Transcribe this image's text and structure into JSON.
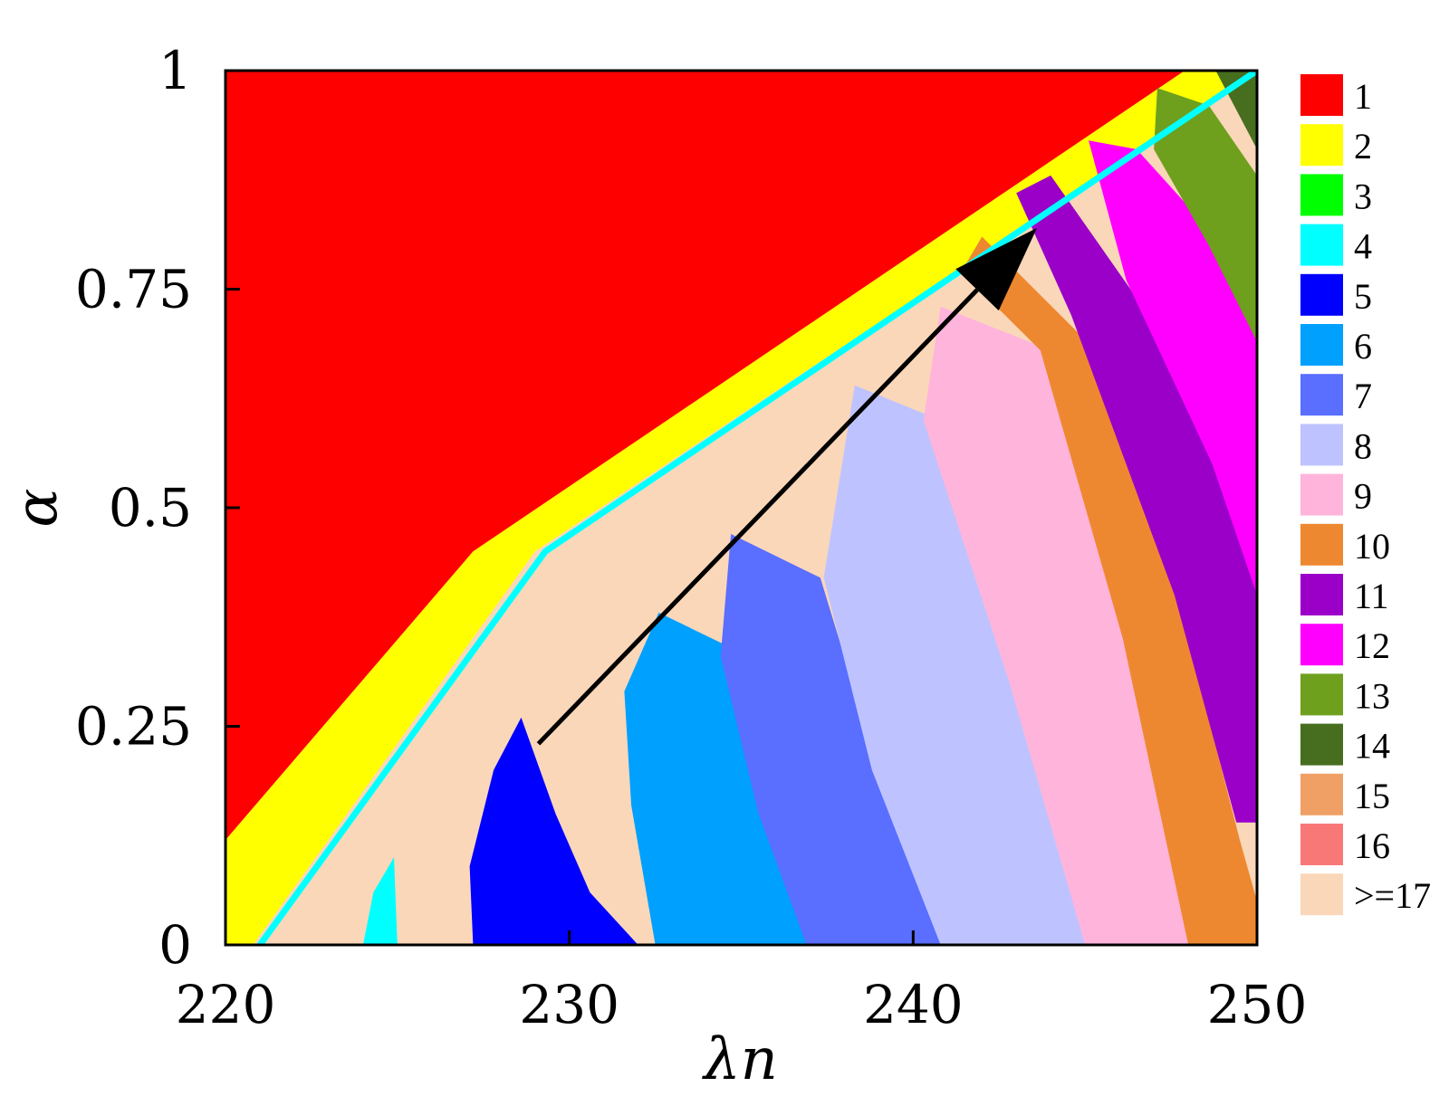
{
  "chart_data": {
    "type": "heatmap",
    "title": "",
    "xlabel": "λn",
    "ylabel": "α",
    "xlim": [
      220,
      250
    ],
    "ylim": [
      0,
      1
    ],
    "x_ticks": [
      {
        "value": 220,
        "label": "220"
      },
      {
        "value": 230,
        "label": "230"
      },
      {
        "value": 240,
        "label": "240"
      },
      {
        "value": 250,
        "label": "250"
      }
    ],
    "y_ticks": [
      {
        "value": 0,
        "label": "0"
      },
      {
        "value": 0.25,
        "label": "0.25"
      },
      {
        "value": 0.5,
        "label": "0.5"
      },
      {
        "value": 0.75,
        "label": "0.75"
      },
      {
        "value": 1,
        "label": "1"
      }
    ],
    "legend_position": "right",
    "legend": [
      {
        "label": "1",
        "color": "#ff0000"
      },
      {
        "label": "2",
        "color": "#ffff00"
      },
      {
        "label": "3",
        "color": "#00ff00"
      },
      {
        "label": "4",
        "color": "#00ffff"
      },
      {
        "label": "5",
        "color": "#0000ff"
      },
      {
        "label": "6",
        "color": "#00a0ff"
      },
      {
        "label": "7",
        "color": "#5a6eff"
      },
      {
        "label": "8",
        "color": "#bec3ff"
      },
      {
        "label": "9",
        "color": "#ffb4dc"
      },
      {
        "label": "10",
        "color": "#ee8830"
      },
      {
        "label": "11",
        "color": "#9b00c8"
      },
      {
        "label": "12",
        "color": "#ff00ff"
      },
      {
        "label": "13",
        "color": "#6ea01e"
      },
      {
        "label": "14",
        "color": "#466e1e"
      },
      {
        "label": "15",
        "color": "#f0a064"
      },
      {
        "label": "16",
        "color": "#f87878"
      },
      {
        "label": ">=17",
        "color": "#fad7b9"
      }
    ],
    "regions": [
      {
        "value": "1",
        "boundary": [
          [
            220,
            0.12
          ],
          [
            220,
            1
          ],
          [
            247.9,
            1
          ],
          [
            227.2,
            0.45
          ],
          [
            220,
            0.12
          ]
        ]
      },
      {
        "value": "2",
        "boundary": [
          [
            220,
            0.12
          ],
          [
            227.2,
            0.45
          ],
          [
            247.9,
            1
          ],
          [
            250,
            1
          ],
          [
            229,
            0.45
          ],
          [
            220.8,
            0
          ],
          [
            220,
            0
          ]
        ]
      },
      {
        "value": "5",
        "boundary": [
          [
            227.2,
            0
          ],
          [
            227.1,
            0.09
          ],
          [
            227.8,
            0.2
          ],
          [
            228.6,
            0.26
          ],
          [
            229.6,
            0.15
          ],
          [
            230.6,
            0.06
          ],
          [
            232.0,
            0
          ]
        ]
      },
      {
        "value": "6",
        "boundary": [
          [
            232.5,
            0
          ],
          [
            231.8,
            0.16
          ],
          [
            231.6,
            0.29
          ],
          [
            232.6,
            0.38
          ],
          [
            234.7,
            0.34
          ],
          [
            236.0,
            0.16
          ],
          [
            237.0,
            0
          ]
        ]
      },
      {
        "value": "7",
        "boundary": [
          [
            236.9,
            0
          ],
          [
            235.5,
            0.15
          ],
          [
            234.4,
            0.33
          ],
          [
            234.7,
            0.47
          ],
          [
            237.3,
            0.42
          ],
          [
            239.0,
            0.2
          ],
          [
            241.2,
            0
          ]
        ]
      },
      {
        "value": "8",
        "boundary": [
          [
            240.8,
            0
          ],
          [
            238.8,
            0.2
          ],
          [
            237.4,
            0.42
          ],
          [
            238.3,
            0.64
          ],
          [
            240.8,
            0.6
          ],
          [
            243.2,
            0.3
          ],
          [
            245.2,
            0
          ]
        ]
      },
      {
        "value": "9",
        "boundary": [
          [
            245.0,
            0
          ],
          [
            242.8,
            0.3
          ],
          [
            240.3,
            0.6
          ],
          [
            240.8,
            0.73
          ],
          [
            244.0,
            0.68
          ],
          [
            246.4,
            0.35
          ],
          [
            248.0,
            0
          ]
        ]
      },
      {
        "value": "10",
        "boundary": [
          [
            248.0,
            0
          ],
          [
            246.1,
            0.35
          ],
          [
            243.7,
            0.68
          ],
          [
            241.4,
            0.77
          ],
          [
            242.0,
            0.81
          ],
          [
            244.8,
            0.7
          ],
          [
            247.8,
            0.38
          ],
          [
            249.5,
            0.12
          ],
          [
            250,
            0.05
          ],
          [
            250,
            0
          ]
        ]
      },
      {
        "value": "11",
        "boundary": [
          [
            249.4,
            0.14
          ],
          [
            247.6,
            0.4
          ],
          [
            244.6,
            0.72
          ],
          [
            243.0,
            0.86
          ],
          [
            244.0,
            0.88
          ],
          [
            246.5,
            0.74
          ],
          [
            249.0,
            0.53
          ],
          [
            250,
            0.4
          ],
          [
            250,
            0.14
          ]
        ]
      },
      {
        "value": "12",
        "boundary": [
          [
            250,
            0.4
          ],
          [
            248.7,
            0.55
          ],
          [
            246.2,
            0.76
          ],
          [
            245.1,
            0.92
          ],
          [
            246.5,
            0.91
          ],
          [
            248.8,
            0.81
          ],
          [
            250,
            0.72
          ]
        ]
      },
      {
        "value": "13",
        "boundary": [
          [
            250,
            0.69
          ],
          [
            248.6,
            0.8
          ],
          [
            247.0,
            0.91
          ],
          [
            247.1,
            0.98
          ],
          [
            248.6,
            0.96
          ],
          [
            250,
            0.88
          ]
        ]
      },
      {
        "value": "14",
        "boundary": [
          [
            248.8,
            1
          ],
          [
            250,
            1
          ],
          [
            250,
            0.91
          ]
        ]
      },
      {
        "value": "4",
        "boundary": [
          [
            224.0,
            0
          ],
          [
            224.3,
            0.06
          ],
          [
            224.9,
            0.1
          ],
          [
            225.0,
            0
          ]
        ]
      }
    ],
    "arrow": {
      "from": [
        229.1,
        0.23
      ],
      "to": [
        243.6,
        0.82
      ]
    }
  }
}
